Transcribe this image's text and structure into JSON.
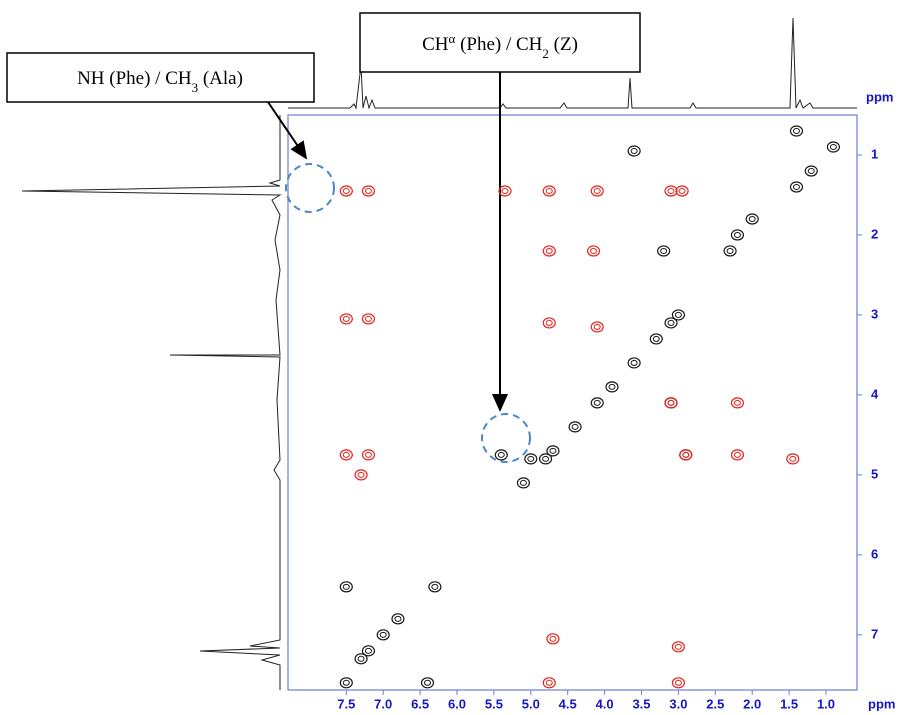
{
  "chart_data": {
    "type": "nmr2d",
    "x_label": "ppm",
    "y_label": "ppm",
    "xlim": [
      8.29,
      0.58
    ],
    "ylim": [
      0.5,
      7.69
    ],
    "xticks": [
      7.5,
      {
        "value": 7,
        "label": "7.0"
      },
      6.5,
      {
        "value": 6,
        "label": "6.0"
      },
      5.5,
      {
        "value": 5,
        "label": "5.0"
      },
      4.5,
      {
        "value": 4,
        "label": "4.0"
      },
      3.5,
      {
        "value": 3,
        "label": "3.0"
      },
      2.5,
      {
        "value": 2,
        "label": "2.0"
      },
      1.5,
      {
        "value": 1,
        "label": "1.0"
      }
    ],
    "yticks": [
      1,
      2,
      3,
      4,
      5,
      6,
      7
    ],
    "series": [
      {
        "color": "#1a1a1a",
        "x": [
          0.9,
          1.2,
          1.4,
          2.0,
          2.2,
          2.3,
          3.0,
          3.1,
          3.3,
          3.6,
          3.9,
          4.1,
          4.4,
          4.7,
          4.8,
          5.1,
          6.8,
          7.0,
          7.2,
          7.3,
          7.5,
          3.2,
          3.1,
          2.9,
          5.4,
          5.0,
          7.5,
          6.3,
          6.4,
          3.6,
          1.4
        ],
        "y": [
          0.9,
          1.2,
          1.4,
          1.8,
          2.0,
          2.2,
          3.0,
          3.1,
          3.3,
          3.6,
          3.9,
          4.1,
          4.4,
          4.7,
          4.8,
          5.1,
          6.8,
          7.0,
          7.2,
          7.3,
          7.6,
          2.2,
          4.1,
          4.75,
          4.75,
          4.8,
          6.4,
          6.4,
          7.6,
          0.95,
          0.7
        ]
      },
      {
        "color": "#e8231b",
        "x": [
          7.5,
          7.2,
          5.35,
          4.75,
          4.1,
          3.1,
          2.95,
          4.75,
          4.15,
          4.75,
          7.5,
          7.2,
          4.1,
          3.1,
          2.2,
          2.9,
          2.2,
          7.5,
          7.2,
          4.7,
          3.0,
          4.75,
          3.0,
          7.3,
          1.45
        ],
        "y": [
          1.45,
          1.45,
          1.45,
          1.45,
          1.45,
          1.45,
          1.45,
          2.2,
          2.2,
          3.1,
          3.05,
          3.05,
          3.15,
          4.1,
          4.1,
          4.75,
          4.75,
          4.75,
          4.75,
          7.05,
          7.15,
          7.6,
          7.6,
          5.0,
          4.8
        ]
      }
    ],
    "annotations": [
      {
        "parts": [
          "NH (Phe) / CH",
          "3",
          " (Ala)"
        ]
      },
      {
        "parts": [
          "CH",
          "α",
          " (Phe) / CH",
          "2",
          " (Z)"
        ]
      }
    ]
  }
}
